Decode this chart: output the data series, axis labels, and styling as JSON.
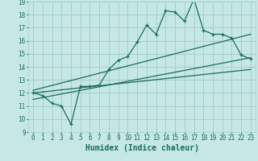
{
  "xlabel": "Humidex (Indice chaleur)",
  "bg_color": "#c5e8e5",
  "grid_color": "#a8ceca",
  "line_color": "#1a6b5a",
  "xlim": [
    -0.5,
    23.5
  ],
  "ylim": [
    9,
    19
  ],
  "xticks": [
    0,
    1,
    2,
    3,
    4,
    5,
    6,
    7,
    8,
    9,
    10,
    11,
    12,
    13,
    14,
    15,
    16,
    17,
    18,
    19,
    20,
    21,
    22,
    23
  ],
  "yticks": [
    9,
    10,
    11,
    12,
    13,
    14,
    15,
    16,
    17,
    18,
    19
  ],
  "main_x": [
    0,
    1,
    2,
    3,
    4,
    5,
    6,
    7,
    8,
    9,
    10,
    11,
    12,
    13,
    14,
    15,
    16,
    17,
    18,
    19,
    20,
    21,
    22,
    23
  ],
  "main_y": [
    12.0,
    11.8,
    11.2,
    11.0,
    9.6,
    12.5,
    12.5,
    12.6,
    13.8,
    14.5,
    14.8,
    15.9,
    17.2,
    16.5,
    18.3,
    18.2,
    17.5,
    19.2,
    16.8,
    16.5,
    16.5,
    16.2,
    14.9,
    14.6
  ],
  "trend1_x": [
    0,
    23
  ],
  "trend1_y": [
    12.2,
    16.5
  ],
  "trend2_x": [
    0,
    23
  ],
  "trend2_y": [
    11.5,
    14.7
  ],
  "trend3_x": [
    0,
    23
  ],
  "trend3_y": [
    12.0,
    13.8
  ],
  "marker_size": 3.5,
  "line_width": 0.9,
  "xlabel_fontsize": 7,
  "tick_fontsize": 5.5
}
